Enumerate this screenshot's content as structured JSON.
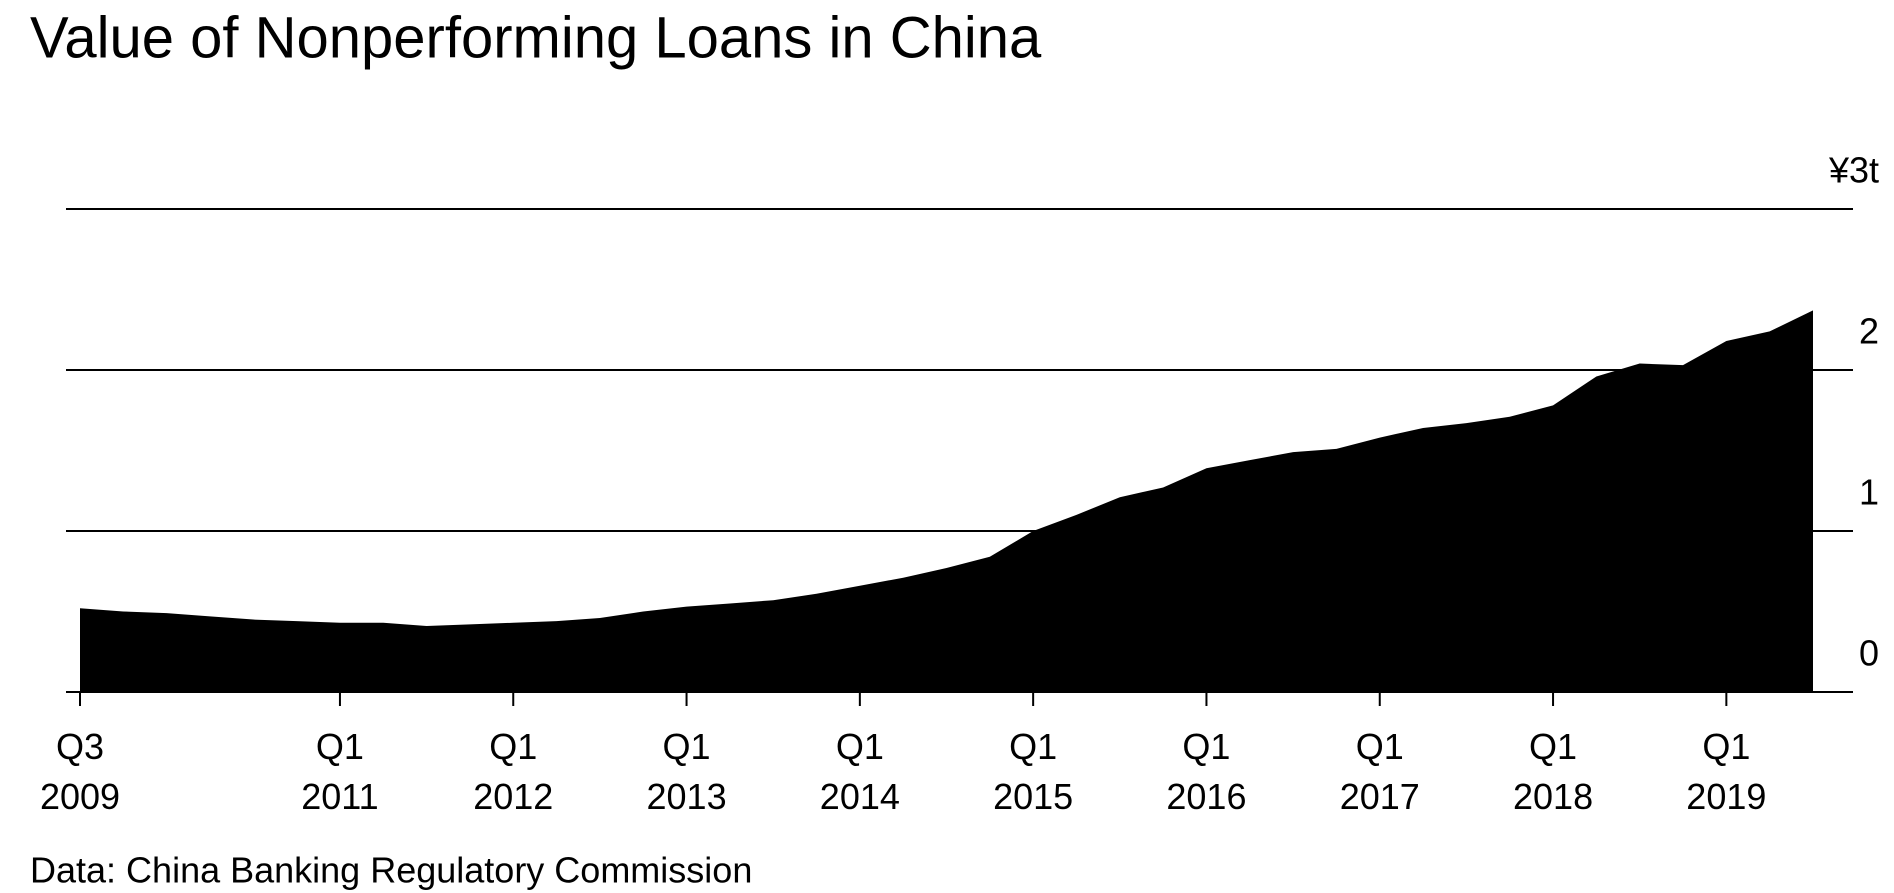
{
  "chart_data": {
    "type": "area",
    "title": "Value of Nonperforming Loans in China",
    "source": "Data: China Banking Regulatory Commission",
    "color": "#000000",
    "grid": true,
    "categories": [
      "Q3 2009",
      null,
      null,
      null,
      null,
      null,
      "Q1 2011",
      null,
      null,
      null,
      "Q1 2012",
      null,
      null,
      null,
      "Q1 2013",
      null,
      null,
      null,
      "Q1 2014",
      null,
      null,
      null,
      "Q1 2015",
      null,
      null,
      null,
      "Q1 2016",
      null,
      null,
      null,
      "Q1 2017",
      null,
      null,
      null,
      "Q1 2018",
      null,
      null,
      null,
      "Q1 2019",
      null,
      null
    ],
    "values": [
      0.52,
      0.5,
      0.49,
      0.47,
      0.45,
      0.44,
      0.43,
      0.43,
      0.41,
      0.42,
      0.43,
      0.44,
      0.46,
      0.5,
      0.53,
      0.55,
      0.57,
      0.61,
      0.66,
      0.71,
      0.77,
      0.84,
      1.0,
      1.1,
      1.21,
      1.27,
      1.39,
      1.44,
      1.49,
      1.51,
      1.58,
      1.64,
      1.67,
      1.71,
      1.78,
      1.96,
      2.04,
      2.03,
      2.18,
      2.24,
      2.37
    ],
    "ylim": [
      0,
      3
    ],
    "yticks": [
      0,
      1,
      2,
      {
        "value": 3,
        "label": "¥3t"
      }
    ]
  }
}
